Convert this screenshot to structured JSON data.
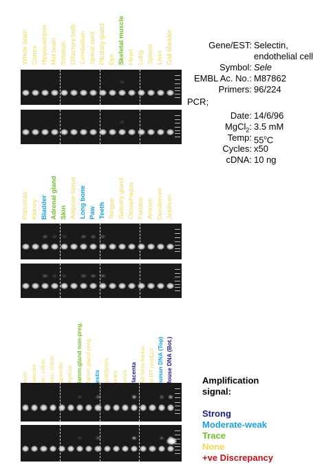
{
  "gene_info": [
    {
      "key": "Gene/EST:",
      "value": "Selectin,"
    },
    {
      "key": "",
      "value": "endothelial cell"
    },
    {
      "key": "Symbol:",
      "value": "Sele",
      "italic": true
    },
    {
      "key": "EMBL Ac. No.:",
      "value": "M87862"
    },
    {
      "key": "Primers:",
      "value": "96/224"
    }
  ],
  "pcr": {
    "heading": "PCR;",
    "params": [
      {
        "key": "Date:",
        "value": "14/6/96"
      },
      {
        "key": "MgCl2:",
        "value": "3.5 mM"
      },
      {
        "key": "Temp:",
        "value": "55oC"
      },
      {
        "key": "Cycles:",
        "value": "x50"
      },
      {
        "key": "cDNA:",
        "value": "10 ng"
      }
    ]
  },
  "colors": {
    "strong": "#1a1a8c",
    "moderate_weak": "#1ba0e0",
    "trace": "#70c02a",
    "none": "#f0d65a",
    "discrepancy": "#c0101c"
  },
  "panels": [
    {
      "lanes": [
        {
          "label": "Whole brain",
          "signal": "none"
        },
        {
          "label": "Cortex",
          "signal": "none"
        },
        {
          "label": "Hippocampus",
          "signal": "none"
        },
        {
          "label": "Mid brain",
          "signal": "none"
        },
        {
          "label": "Striatum",
          "signal": "none"
        },
        {
          "label": "Olfactory bulb",
          "signal": "none"
        },
        {
          "label": "Cerebellum",
          "signal": "none"
        },
        {
          "label": "Spinal cord",
          "signal": "none"
        },
        {
          "label": "Pituitary gland",
          "signal": "none"
        },
        {
          "label": "Eye",
          "signal": "none"
        },
        {
          "label": "Skeletal muscle",
          "signal": "trace"
        },
        {
          "label": "Heart",
          "signal": "none"
        },
        {
          "label": "Lung",
          "signal": "none"
        },
        {
          "label": "Spleen",
          "signal": "none"
        },
        {
          "label": "Liver",
          "signal": "none"
        },
        {
          "label": "Gall bladder",
          "signal": "none"
        }
      ]
    },
    {
      "lanes": [
        {
          "label": "Pancreas",
          "signal": "none"
        },
        {
          "label": "Kidney",
          "signal": "none"
        },
        {
          "label": "Bladder",
          "signal": "moderate_weak"
        },
        {
          "label": "Adrenal gland",
          "signal": "trace"
        },
        {
          "label": "Skin",
          "signal": "trace"
        },
        {
          "label": "Adipose tissue",
          "signal": "none"
        },
        {
          "label": "Long bone",
          "signal": "moderate_weak"
        },
        {
          "label": "Paw",
          "signal": "moderate_weak"
        },
        {
          "label": "Teeth",
          "signal": "moderate_weak"
        },
        {
          "label": "Tongue",
          "signal": "none"
        },
        {
          "label": "Salivary gland",
          "signal": "none"
        },
        {
          "label": "Oesophagus",
          "signal": "none"
        },
        {
          "label": "Fundus",
          "signal": "none"
        },
        {
          "label": "Antrum",
          "signal": "none"
        },
        {
          "label": "Duodenum",
          "signal": "none"
        },
        {
          "label": "Jejunum",
          "signal": "none"
        }
      ]
    },
    {
      "lanes": [
        {
          "label": "Ileum",
          "signal": "none"
        },
        {
          "label": "Caecum",
          "signal": "none"
        },
        {
          "label": "Asc. colon",
          "signal": "none"
        },
        {
          "label": "Desc. colon",
          "signal": "none"
        },
        {
          "label": "Appendix",
          "signal": "none"
        },
        {
          "label": "Thymus",
          "signal": "none"
        },
        {
          "label": "Mamm.gland non-preg.",
          "signal": "trace"
        },
        {
          "label": "Mamm.gland preg.",
          "signal": "none"
        },
        {
          "label": "Testis",
          "signal": "moderate_weak"
        },
        {
          "label": "Epididymis",
          "signal": "none"
        },
        {
          "label": "Ovary",
          "signal": "none"
        },
        {
          "label": "Cervix",
          "signal": "none"
        },
        {
          "label": "Placenta",
          "signal": "strong"
        },
        {
          "label": "Mid-term foetus",
          "signal": "none"
        },
        {
          "label": "No RT product",
          "signal": "none"
        },
        {
          "label": "Human DNA (Top)",
          "signal": "moderate_weak"
        },
        {
          "label": "Mouse DNA (Bot.)",
          "signal": "strong"
        }
      ]
    }
  ],
  "legend": {
    "title_line1": "Amplification",
    "title_line2": "signal:",
    "items": [
      {
        "label": "Strong",
        "signal": "strong"
      },
      {
        "label": "Moderate-weak",
        "signal": "moderate_weak"
      },
      {
        "label": "Trace",
        "signal": "trace"
      },
      {
        "label": "None",
        "signal": "none"
      },
      {
        "label": "+ve Discrepancy",
        "signal": "discrepancy"
      }
    ]
  }
}
